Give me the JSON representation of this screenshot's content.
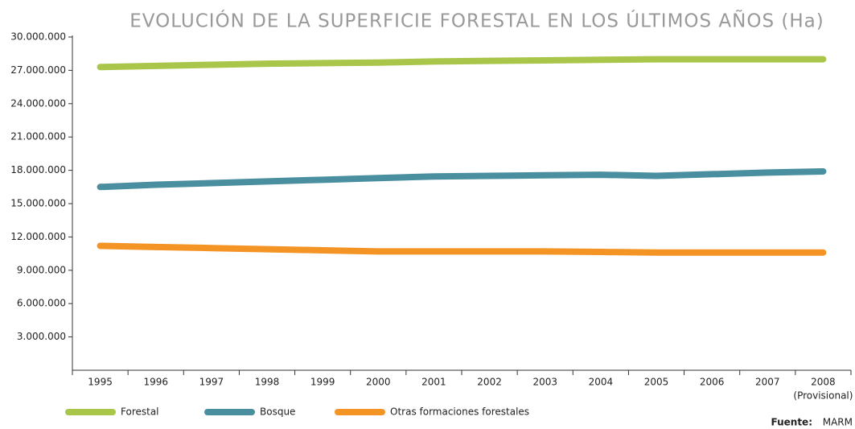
{
  "chart_data": {
    "type": "line",
    "title": "EVOLUCIÓN DE LA SUPERFICIE FORESTAL EN LOS ÚLTIMOS AÑOS (Ha)",
    "categories": [
      "1995",
      "1996",
      "1997",
      "1998",
      "1999",
      "2000",
      "2001",
      "2002",
      "2003",
      "2004",
      "2005",
      "2006",
      "2007",
      "2008"
    ],
    "category_note": "(Provisional)",
    "series": [
      {
        "name": "Forestal",
        "color": "#a9c64b",
        "values": [
          27300000,
          27400000,
          27500000,
          27600000,
          27650000,
          27700000,
          27800000,
          27850000,
          27900000,
          27950000,
          28000000,
          28000000,
          28000000,
          28000000
        ]
      },
      {
        "name": "Bosque",
        "color": "#4a8f9f",
        "values": [
          16500000,
          16700000,
          16850000,
          17000000,
          17150000,
          17300000,
          17450000,
          17500000,
          17550000,
          17600000,
          17500000,
          17650000,
          17800000,
          17900000
        ]
      },
      {
        "name": "Otras formaciones forestales",
        "color": "#f39425",
        "values": [
          11200000,
          11100000,
          11000000,
          10900000,
          10800000,
          10700000,
          10700000,
          10700000,
          10700000,
          10650000,
          10600000,
          10600000,
          10600000,
          10600000
        ]
      }
    ],
    "ylim": [
      0,
      30000000
    ],
    "yticks": [
      {
        "value": 3000000,
        "label": "3.000.000"
      },
      {
        "value": 6000000,
        "label": "6.000.000"
      },
      {
        "value": 9000000,
        "label": "9.000.000"
      },
      {
        "value": 12000000,
        "label": "12.000.000"
      },
      {
        "value": 15000000,
        "label": "15.000.000"
      },
      {
        "value": 18000000,
        "label": "18.000.000"
      },
      {
        "value": 21000000,
        "label": "21.000.000"
      },
      {
        "value": 24000000,
        "label": "24.000.000"
      },
      {
        "value": 27000000,
        "label": "27.000.000"
      },
      {
        "value": 30000000,
        "label": "30.000.000"
      }
    ],
    "source": {
      "label": "Fuente:",
      "text": "MARM"
    }
  }
}
